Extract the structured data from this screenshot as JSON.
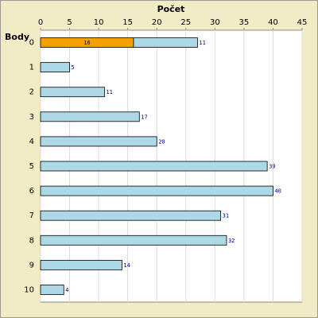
{
  "chart_data": {
    "type": "bar",
    "orientation": "horizontal",
    "stacked": true,
    "title": "Počet",
    "y_label": "Body",
    "categories": [
      "0",
      "1",
      "2",
      "3",
      "4",
      "5",
      "6",
      "7",
      "8",
      "9",
      "10"
    ],
    "series": [
      {
        "color": "#f5a000",
        "values": [
          16,
          null,
          null,
          null,
          null,
          null,
          null,
          null,
          null,
          null,
          null
        ]
      },
      {
        "color": "#add8e6",
        "values": [
          11,
          5,
          11,
          17,
          20,
          39,
          40,
          31,
          32,
          14,
          4
        ]
      }
    ],
    "xlim": [
      0,
      45
    ],
    "xticks": [
      0,
      5,
      10,
      15,
      20,
      25,
      30,
      35,
      40,
      45
    ],
    "grid": true
  }
}
